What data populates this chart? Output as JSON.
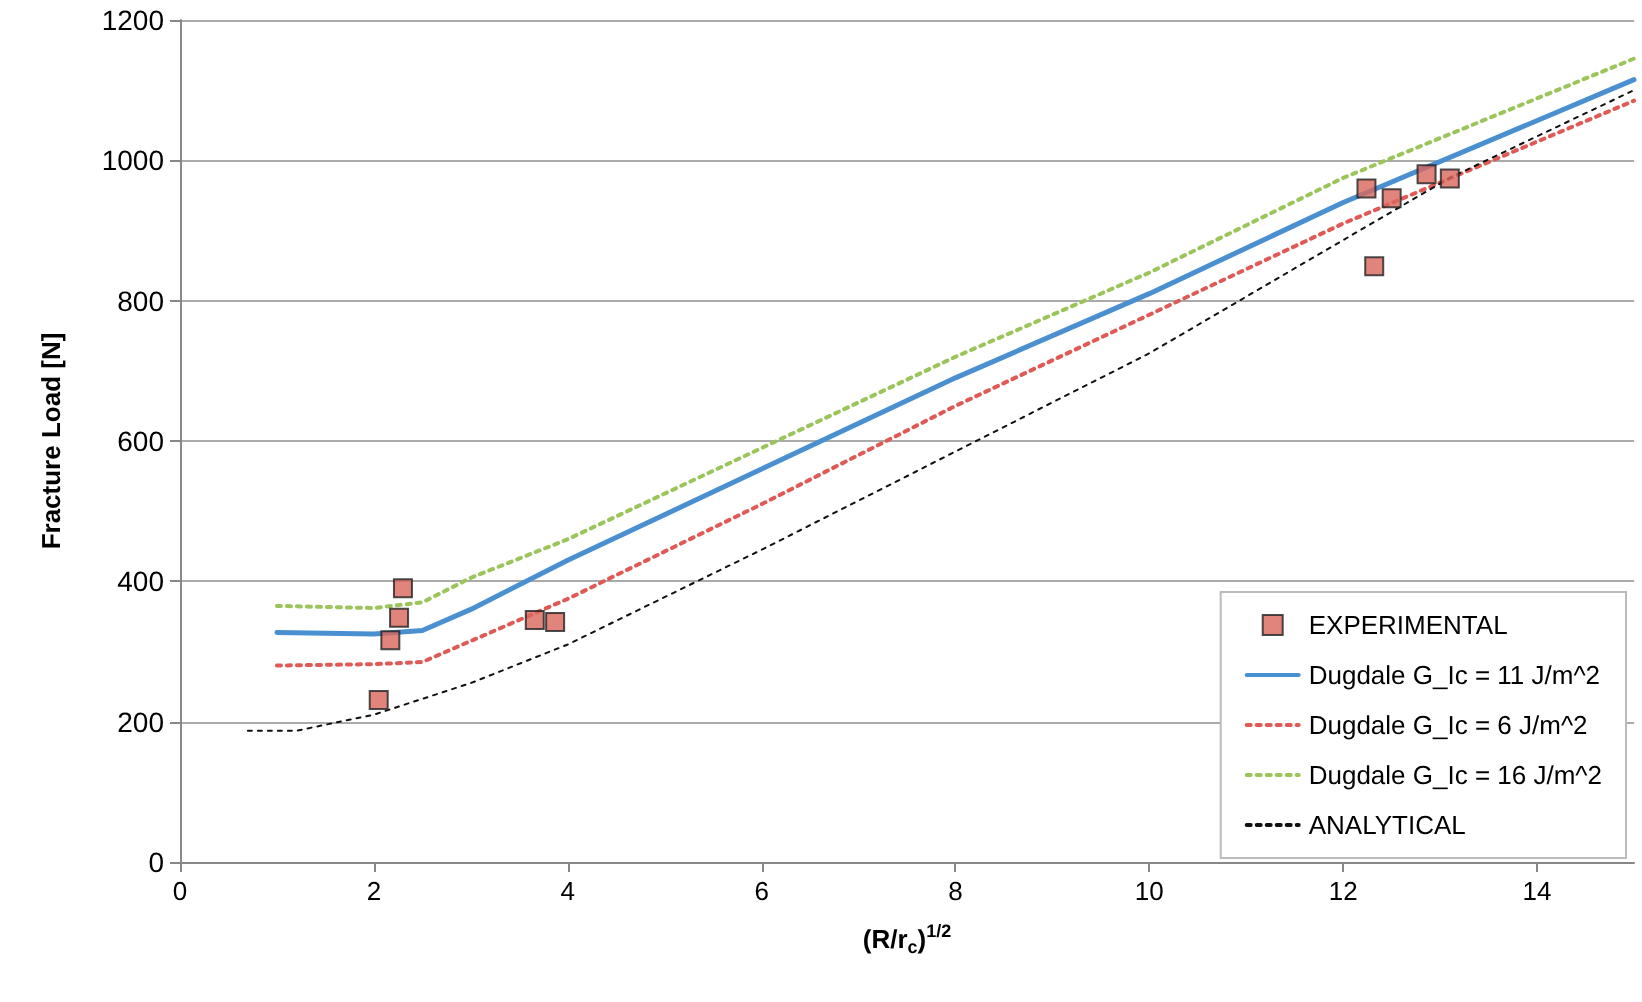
{
  "chart_data": {
    "type": "line",
    "xlabel": "(R/r$_{c}$)$^{1/2}$",
    "ylabel": "Fracture Load [N]",
    "xlim": [
      0,
      15
    ],
    "xticks": [
      0,
      2,
      4,
      6,
      8,
      10,
      12,
      14
    ],
    "ylim": [
      0,
      1200
    ],
    "yticks": [
      0,
      200,
      400,
      600,
      800,
      1000,
      1200
    ],
    "grid": "y",
    "legend": "bottom right",
    "series": [
      {
        "name": "EXPERIMENTAL",
        "type": "scatter",
        "marker": "square",
        "color": "#d9665b",
        "x": [
          2.05,
          2.17,
          2.26,
          2.3,
          3.66,
          3.87,
          12.24,
          12.5,
          12.32,
          12.86,
          13.1
        ],
        "values": [
          231,
          316,
          348,
          390,
          345,
          342,
          960,
          946,
          849,
          980,
          974
        ]
      },
      {
        "name": "Dugdale G_Ic = 11 J/m^2",
        "color": "#4a90d0",
        "line_style": "solid",
        "x": [
          1,
          2,
          2.5,
          3,
          4,
          6,
          8,
          10,
          12,
          15
        ],
        "values": [
          327,
          325,
          330,
          360,
          430,
          560,
          690,
          810,
          940,
          1115
        ]
      },
      {
        "name": "Dugdale G_Ic = 6 J/m^2",
        "color": "#e05a55",
        "line_style": "dotted",
        "x": [
          1,
          2,
          2.5,
          3,
          4,
          6,
          8,
          10,
          12,
          15
        ],
        "values": [
          280,
          282,
          285,
          315,
          375,
          510,
          650,
          780,
          910,
          1085
        ]
      },
      {
        "name": "Dugdale G_Ic = 16 J/m^2",
        "color": "#9bc55a",
        "line_style": "dotted",
        "x": [
          1,
          2,
          2.5,
          3,
          4,
          6,
          8,
          10,
          12,
          15
        ],
        "values": [
          365,
          362,
          370,
          405,
          460,
          590,
          720,
          840,
          975,
          1145
        ]
      },
      {
        "name": "ANALYTICAL",
        "color": "#111111",
        "line_style": "dotted",
        "x": [
          0.7,
          1.2,
          2,
          3,
          4,
          6,
          8,
          10,
          11.4,
          13.1,
          15
        ],
        "values": [
          187,
          187,
          210,
          255,
          310,
          445,
          585,
          725,
          838,
          975,
          1100
        ]
      }
    ]
  }
}
